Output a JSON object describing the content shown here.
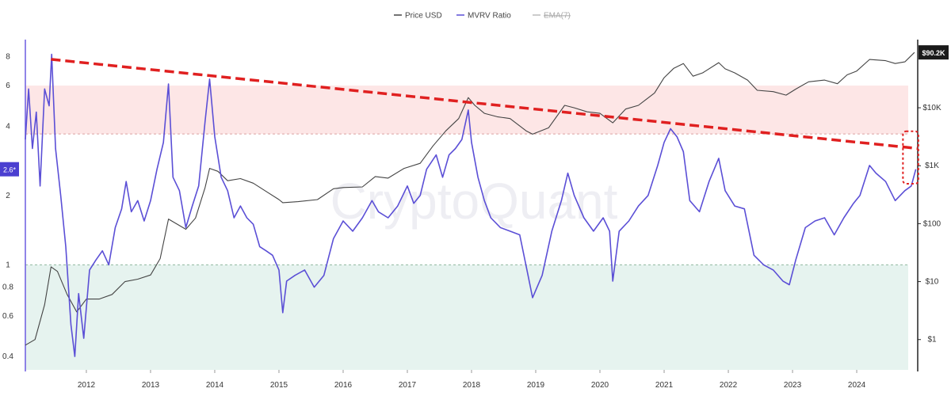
{
  "legend": [
    {
      "label": "Price USD",
      "color": "#444444",
      "struck": false
    },
    {
      "label": "MVRV Ratio",
      "color": "#5b4fd6",
      "struck": false
    },
    {
      "label": "EMA(7)",
      "color": "#bbbbbb",
      "struck": true
    }
  ],
  "watermark": "CryptoQuant",
  "chart_data": {
    "type": "line",
    "title": "",
    "x_ticks": [
      "2012",
      "2013",
      "2014",
      "2015",
      "2016",
      "2017",
      "2018",
      "2019",
      "2020",
      "2021",
      "2022",
      "2023",
      "2024"
    ],
    "x_range": [
      2011.05,
      2024.95
    ],
    "left_axis": {
      "scale": "log",
      "ticks": [
        "8",
        "6",
        "4",
        "2",
        "1",
        "0.8",
        "0.6",
        "0.4"
      ],
      "range": [
        0.35,
        9.5
      ],
      "current_value_badge": "2.6*"
    },
    "right_axis": {
      "scale": "log",
      "ticks": [
        "$10K",
        "$1K",
        "$100",
        "$10",
        "$1"
      ],
      "range": [
        0.3,
        150000
      ],
      "current_value_badge": "$90.2K"
    },
    "zones": [
      {
        "name": "MVRV high band",
        "from": 3.7,
        "to": 6,
        "color": "#fde6e6"
      },
      {
        "name": "MVRV low band",
        "from": 0.35,
        "to": 1,
        "color": "#e6f3ef"
      }
    ],
    "trendline": {
      "from": [
        2011.45,
        7.8
      ],
      "to": [
        2024.95,
        3.2
      ],
      "color": "#e02020",
      "style": "dashed"
    },
    "highlight_box": {
      "x_range": [
        2024.72,
        2024.96
      ],
      "y_range": [
        2.25,
        3.8
      ],
      "color": "#e02020",
      "style": "dotted"
    },
    "series": [
      {
        "name": "MVRV Ratio",
        "axis": "left",
        "color": "#5b4fd6",
        "points": [
          [
            2011.05,
            3.5
          ],
          [
            2011.1,
            5.8
          ],
          [
            2011.16,
            3.2
          ],
          [
            2011.22,
            4.6
          ],
          [
            2011.28,
            2.2
          ],
          [
            2011.35,
            5.8
          ],
          [
            2011.42,
            4.9
          ],
          [
            2011.46,
            8.2
          ],
          [
            2011.52,
            3.2
          ],
          [
            2011.6,
            2.0
          ],
          [
            2011.68,
            1.2
          ],
          [
            2011.76,
            0.55
          ],
          [
            2011.82,
            0.4
          ],
          [
            2011.88,
            0.75
          ],
          [
            2011.96,
            0.48
          ],
          [
            2012.05,
            0.95
          ],
          [
            2012.15,
            1.05
          ],
          [
            2012.25,
            1.15
          ],
          [
            2012.35,
            1.0
          ],
          [
            2012.45,
            1.45
          ],
          [
            2012.55,
            1.75
          ],
          [
            2012.62,
            2.3
          ],
          [
            2012.7,
            1.7
          ],
          [
            2012.8,
            1.9
          ],
          [
            2012.9,
            1.55
          ],
          [
            2013.0,
            1.9
          ],
          [
            2013.1,
            2.6
          ],
          [
            2013.2,
            3.4
          ],
          [
            2013.28,
            6.1
          ],
          [
            2013.35,
            2.4
          ],
          [
            2013.45,
            2.1
          ],
          [
            2013.55,
            1.45
          ],
          [
            2013.65,
            1.8
          ],
          [
            2013.75,
            2.2
          ],
          [
            2013.85,
            4.2
          ],
          [
            2013.92,
            6.4
          ],
          [
            2014.0,
            3.6
          ],
          [
            2014.1,
            2.4
          ],
          [
            2014.2,
            2.1
          ],
          [
            2014.3,
            1.6
          ],
          [
            2014.4,
            1.8
          ],
          [
            2014.5,
            1.6
          ],
          [
            2014.6,
            1.5
          ],
          [
            2014.7,
            1.2
          ],
          [
            2014.8,
            1.15
          ],
          [
            2014.9,
            1.1
          ],
          [
            2015.0,
            0.95
          ],
          [
            2015.06,
            0.62
          ],
          [
            2015.12,
            0.85
          ],
          [
            2015.25,
            0.9
          ],
          [
            2015.4,
            0.95
          ],
          [
            2015.55,
            0.8
          ],
          [
            2015.7,
            0.9
          ],
          [
            2015.85,
            1.3
          ],
          [
            2016.0,
            1.55
          ],
          [
            2016.15,
            1.4
          ],
          [
            2016.3,
            1.6
          ],
          [
            2016.45,
            1.9
          ],
          [
            2016.55,
            1.7
          ],
          [
            2016.7,
            1.6
          ],
          [
            2016.85,
            1.8
          ],
          [
            2017.0,
            2.2
          ],
          [
            2017.1,
            1.85
          ],
          [
            2017.2,
            2.0
          ],
          [
            2017.3,
            2.6
          ],
          [
            2017.45,
            3.0
          ],
          [
            2017.55,
            2.4
          ],
          [
            2017.65,
            3.0
          ],
          [
            2017.75,
            3.2
          ],
          [
            2017.85,
            3.5
          ],
          [
            2017.95,
            4.7
          ],
          [
            2018.0,
            3.4
          ],
          [
            2018.1,
            2.4
          ],
          [
            2018.2,
            1.9
          ],
          [
            2018.3,
            1.6
          ],
          [
            2018.45,
            1.45
          ],
          [
            2018.6,
            1.4
          ],
          [
            2018.75,
            1.35
          ],
          [
            2018.88,
            0.9
          ],
          [
            2018.95,
            0.72
          ],
          [
            2019.1,
            0.9
          ],
          [
            2019.25,
            1.4
          ],
          [
            2019.4,
            1.9
          ],
          [
            2019.5,
            2.5
          ],
          [
            2019.6,
            2.0
          ],
          [
            2019.75,
            1.6
          ],
          [
            2019.9,
            1.4
          ],
          [
            2020.05,
            1.6
          ],
          [
            2020.15,
            1.4
          ],
          [
            2020.2,
            0.85
          ],
          [
            2020.3,
            1.4
          ],
          [
            2020.45,
            1.55
          ],
          [
            2020.6,
            1.8
          ],
          [
            2020.75,
            2.0
          ],
          [
            2020.9,
            2.7
          ],
          [
            2021.0,
            3.4
          ],
          [
            2021.1,
            3.9
          ],
          [
            2021.2,
            3.6
          ],
          [
            2021.3,
            3.1
          ],
          [
            2021.4,
            1.9
          ],
          [
            2021.55,
            1.7
          ],
          [
            2021.7,
            2.3
          ],
          [
            2021.85,
            2.9
          ],
          [
            2021.95,
            2.1
          ],
          [
            2022.1,
            1.8
          ],
          [
            2022.25,
            1.75
          ],
          [
            2022.4,
            1.1
          ],
          [
            2022.55,
            1.0
          ],
          [
            2022.7,
            0.95
          ],
          [
            2022.85,
            0.85
          ],
          [
            2022.95,
            0.82
          ],
          [
            2023.05,
            1.05
          ],
          [
            2023.2,
            1.45
          ],
          [
            2023.35,
            1.55
          ],
          [
            2023.5,
            1.6
          ],
          [
            2023.65,
            1.35
          ],
          [
            2023.8,
            1.6
          ],
          [
            2023.95,
            1.85
          ],
          [
            2024.05,
            2.0
          ],
          [
            2024.2,
            2.7
          ],
          [
            2024.3,
            2.5
          ],
          [
            2024.45,
            2.3
          ],
          [
            2024.6,
            1.9
          ],
          [
            2024.75,
            2.1
          ],
          [
            2024.85,
            2.2
          ],
          [
            2024.92,
            2.6
          ]
        ]
      },
      {
        "name": "Price USD",
        "axis": "right",
        "color": "#444444",
        "points": [
          [
            2011.05,
            0.8
          ],
          [
            2011.2,
            1.0
          ],
          [
            2011.35,
            4.0
          ],
          [
            2011.45,
            18
          ],
          [
            2011.55,
            15
          ],
          [
            2011.7,
            6
          ],
          [
            2011.85,
            3
          ],
          [
            2012.0,
            5
          ],
          [
            2012.2,
            5
          ],
          [
            2012.4,
            6
          ],
          [
            2012.6,
            10
          ],
          [
            2012.8,
            11
          ],
          [
            2013.0,
            13
          ],
          [
            2013.15,
            25
          ],
          [
            2013.28,
            120
          ],
          [
            2013.4,
            100
          ],
          [
            2013.55,
            80
          ],
          [
            2013.7,
            125
          ],
          [
            2013.85,
            420
          ],
          [
            2013.92,
            900
          ],
          [
            2014.05,
            800
          ],
          [
            2014.2,
            550
          ],
          [
            2014.4,
            600
          ],
          [
            2014.6,
            500
          ],
          [
            2014.8,
            360
          ],
          [
            2015.0,
            260
          ],
          [
            2015.06,
            230
          ],
          [
            2015.3,
            240
          ],
          [
            2015.6,
            260
          ],
          [
            2015.85,
            400
          ],
          [
            2016.0,
            420
          ],
          [
            2016.3,
            430
          ],
          [
            2016.5,
            650
          ],
          [
            2016.7,
            610
          ],
          [
            2016.95,
            900
          ],
          [
            2017.2,
            1100
          ],
          [
            2017.4,
            2200
          ],
          [
            2017.6,
            4000
          ],
          [
            2017.8,
            6500
          ],
          [
            2017.95,
            15000
          ],
          [
            2018.05,
            11000
          ],
          [
            2018.2,
            8000
          ],
          [
            2018.4,
            7000
          ],
          [
            2018.6,
            6500
          ],
          [
            2018.85,
            4000
          ],
          [
            2018.95,
            3500
          ],
          [
            2019.2,
            4500
          ],
          [
            2019.45,
            11000
          ],
          [
            2019.6,
            10000
          ],
          [
            2019.8,
            8500
          ],
          [
            2020.0,
            8000
          ],
          [
            2020.2,
            5500
          ],
          [
            2020.4,
            9500
          ],
          [
            2020.6,
            11000
          ],
          [
            2020.85,
            18000
          ],
          [
            2021.0,
            33000
          ],
          [
            2021.15,
            48000
          ],
          [
            2021.3,
            58000
          ],
          [
            2021.45,
            35000
          ],
          [
            2021.6,
            40000
          ],
          [
            2021.85,
            60000
          ],
          [
            2021.95,
            47000
          ],
          [
            2022.1,
            40000
          ],
          [
            2022.3,
            30000
          ],
          [
            2022.45,
            20000
          ],
          [
            2022.7,
            19000
          ],
          [
            2022.9,
            16500
          ],
          [
            2023.05,
            21000
          ],
          [
            2023.25,
            28000
          ],
          [
            2023.5,
            30000
          ],
          [
            2023.7,
            26000
          ],
          [
            2023.85,
            37000
          ],
          [
            2024.0,
            43000
          ],
          [
            2024.2,
            68000
          ],
          [
            2024.45,
            65000
          ],
          [
            2024.6,
            58000
          ],
          [
            2024.75,
            62000
          ],
          [
            2024.9,
            90200
          ]
        ]
      }
    ]
  }
}
